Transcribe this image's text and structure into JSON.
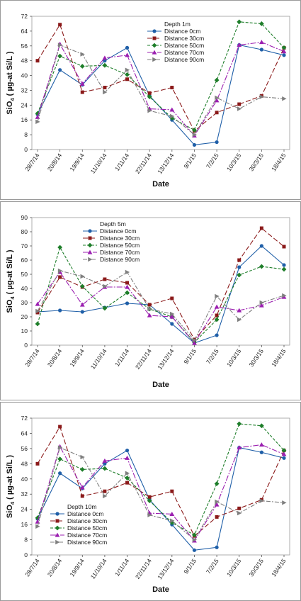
{
  "x_categories": [
    "28/7/14",
    "20/8/14",
    "19/9/14",
    "11/10/14",
    "1/11/14",
    "22/11/14",
    "13/12/14",
    "9/1/15",
    "7/2/15",
    "10/3/15",
    "30/3/15",
    "18/4/15"
  ],
  "colors": {
    "Distance 0cm": "#1f5fa8",
    "Distance 30cm": "#8b1a1a",
    "Distance 50cm": "#1e7e2a",
    "Distance 70cm": "#9b1fb0",
    "Distance 90cm": "#7f7f7f"
  },
  "chart_data": [
    {
      "type": "line",
      "legend_title": "Depth 1m",
      "legend_position": "top-center",
      "xlabel": "Date",
      "ylabel_main": "SiO",
      "ylabel_sub": "4",
      "ylabel_rest": " ( µg-at Si/L )",
      "ylim": [
        0,
        72
      ],
      "yticks": [
        0,
        8,
        16,
        24,
        32,
        40,
        48,
        56,
        64,
        72
      ],
      "categories": [
        "28/7/14",
        "20/8/14",
        "19/9/14",
        "11/10/14",
        "1/11/14",
        "22/11/14",
        "13/12/14",
        "9/1/15",
        "7/2/15",
        "10/3/15",
        "30/3/15",
        "18/4/15"
      ],
      "series": [
        {
          "name": "Distance 0cm",
          "values": [
            19,
            43,
            35,
            48,
            55,
            29,
            16,
            2.5,
            4,
            56.5,
            54,
            51
          ]
        },
        {
          "name": "Distance 30cm",
          "values": [
            48,
            67.5,
            31,
            33.5,
            38,
            30.5,
            33.5,
            10,
            20,
            24.5,
            29,
            55
          ]
        },
        {
          "name": "Distance 50cm",
          "values": [
            19.5,
            50.5,
            45,
            45.5,
            40.5,
            28.5,
            17,
            10.5,
            37.5,
            69,
            68,
            55
          ]
        },
        {
          "name": "Distance 70cm",
          "values": [
            17.5,
            57,
            35.5,
            49.5,
            51,
            22,
            21.5,
            7.5,
            26.5,
            56.5,
            58,
            53
          ]
        },
        {
          "name": "Distance 90cm",
          "values": [
            15,
            56.5,
            51.5,
            31,
            43,
            21,
            18,
            8,
            28,
            22,
            28.5,
            27.5
          ]
        }
      ]
    },
    {
      "type": "line",
      "legend_title": "Depth 5m",
      "legend_position": "top-left",
      "xlabel": "Date",
      "ylabel_main": "SiO",
      "ylabel_sub": "4",
      "ylabel_rest": " ( µg-at Si/L )",
      "ylim": [
        0,
        90
      ],
      "yticks": [
        0,
        10,
        20,
        30,
        40,
        50,
        60,
        70,
        80,
        90
      ],
      "categories": [
        "28/7/14",
        "20/8/14",
        "19/9/14",
        "11/10/14",
        "1/11/14",
        "22/11/14",
        "13/12/14",
        "9/1/15",
        "7/2/15",
        "10/3/15",
        "30/3/15",
        "18/4/15"
      ],
      "series": [
        {
          "name": "Distance 0cm",
          "values": [
            23.5,
            24.5,
            23.5,
            26.5,
            29.5,
            28.5,
            15,
            1.5,
            7,
            55,
            70,
            56.5
          ]
        },
        {
          "name": "Distance 30cm",
          "values": [
            23,
            48,
            41,
            46.5,
            44,
            28.5,
            33,
            4,
            21,
            60,
            82.5,
            69.5
          ]
        },
        {
          "name": "Distance 50cm",
          "values": [
            15,
            69,
            41.5,
            26,
            37,
            25.5,
            20,
            2,
            18,
            49.5,
            55.5,
            53.5
          ]
        },
        {
          "name": "Distance 70cm",
          "values": [
            29,
            51.5,
            28.5,
            41,
            41,
            21,
            20,
            1.5,
            27,
            24.5,
            28,
            34
          ]
        },
        {
          "name": "Distance 90cm",
          "values": [
            24,
            52.5,
            48.5,
            41.5,
            51.5,
            25.5,
            22,
            3.5,
            34.5,
            18,
            30,
            35
          ]
        }
      ]
    },
    {
      "type": "line",
      "legend_title": "Depth 10m",
      "legend_position": "bottom-left",
      "xlabel": "Date",
      "ylabel_main": "SiO",
      "ylabel_sub": "4",
      "ylabel_rest": " ( µg-at Si/L )",
      "ylim": [
        0,
        72
      ],
      "yticks": [
        0,
        8,
        16,
        24,
        32,
        40,
        48,
        56,
        64,
        72
      ],
      "categories": [
        "28/7/14",
        "20/8/14",
        "19/9/14",
        "11/10/14",
        "1/11/14",
        "22/11/14",
        "13/12/14",
        "9/1/15",
        "7/2/15",
        "10/3/15",
        "30/3/15",
        "18/4/15"
      ],
      "series": [
        {
          "name": "Distance 0cm",
          "values": [
            19,
            43,
            35,
            48,
            55,
            29,
            16,
            2.5,
            4,
            56.5,
            54,
            51
          ]
        },
        {
          "name": "Distance 30cm",
          "values": [
            48,
            67.5,
            31,
            33.5,
            38,
            30.5,
            33.5,
            10,
            20,
            24.5,
            29,
            55
          ]
        },
        {
          "name": "Distance 50cm",
          "values": [
            19.5,
            50.5,
            45,
            45.5,
            40.5,
            28.5,
            17,
            10.5,
            37.5,
            69,
            68,
            55
          ]
        },
        {
          "name": "Distance 70cm",
          "values": [
            17.5,
            57,
            35.5,
            49.5,
            51,
            22,
            21.5,
            7.5,
            26.5,
            56.5,
            58,
            53
          ]
        },
        {
          "name": "Distance 90cm",
          "values": [
            15,
            56.5,
            51.5,
            31,
            43,
            21,
            18,
            8,
            28,
            22,
            28.5,
            27.5
          ]
        }
      ]
    }
  ]
}
